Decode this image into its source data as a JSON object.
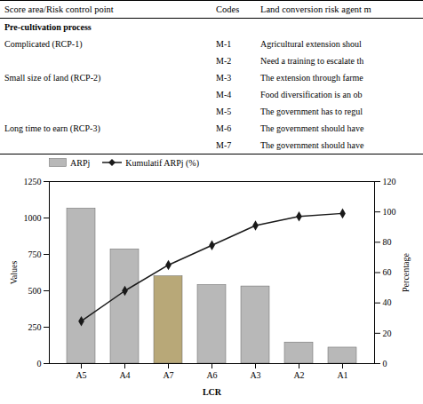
{
  "chart_data": {
    "type": "bar",
    "table": {
      "headers": [
        "Score area/Risk control point",
        "Codes",
        "Land conversion risk agent m"
      ],
      "rows": [
        [
          "Pre-cultivation process",
          null,
          null
        ],
        [
          "Complicated (RCP-1)",
          "M-1",
          "Agricultural extension shoul"
        ],
        [
          null,
          "M-2",
          "Need a training to escalate th"
        ],
        [
          "Small size of land (RCP-2)",
          "M-3",
          "The extension through farme"
        ],
        [
          null,
          "M-4",
          "Food diversification is an ob"
        ],
        [
          null,
          "M-5",
          "The government has to regul"
        ],
        [
          "Long time to earn (RCP-3)",
          "M-6",
          "The government should have"
        ],
        [
          null,
          "M-7",
          "The government should have"
        ]
      ]
    },
    "xlabel": "LCR",
    "ylabel": "Values",
    "y2label": "Percentage",
    "categories": [
      "A5",
      "A4",
      "A7",
      "A6",
      "A3",
      "A2",
      "A1"
    ],
    "series": [
      {
        "name": "ARPj",
        "type": "bar",
        "color": "#b8b8b8",
        "colors": [
          "#b8b8b8",
          "#b8b8b8",
          "#b8a878",
          "#b8b8b8",
          "#b8b8b8",
          "#b8b8b8",
          "#b8b8b8"
        ],
        "values": [
          1065,
          785,
          600,
          540,
          530,
          145,
          110
        ]
      },
      {
        "name": "Kumulatif ARPj (%)",
        "type": "line",
        "axis": "y2",
        "color": "#1a1a1a",
        "marker": "diamond",
        "values": [
          28,
          48,
          65,
          78,
          91,
          97,
          99
        ]
      }
    ],
    "ylim": [
      0,
      1250
    ],
    "yticks": [
      0,
      250,
      500,
      750,
      1000,
      1250
    ],
    "y2lim": [
      0,
      120
    ],
    "y2ticks": [
      0,
      20,
      40,
      60,
      80,
      100,
      120
    ],
    "grid": false,
    "legend": "upper left"
  }
}
